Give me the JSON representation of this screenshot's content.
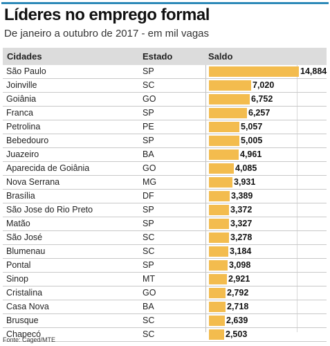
{
  "accent_color": "#2e8ab8",
  "bar_color": "#f3bc4e",
  "title": "Líderes no emprego formal",
  "subtitle": "De janeiro a outubro de 2017 - em mil vagas",
  "headers": {
    "city": "Cidades",
    "state": "Estado",
    "value": "Saldo"
  },
  "source": "Fonte: Caged/MTE",
  "chart_data": {
    "type": "bar",
    "orientation": "horizontal",
    "title": "Líderes no emprego formal",
    "subtitle": "De janeiro a outubro de 2017 - em mil vagas",
    "grid": false,
    "legend": "none",
    "xlim": [
      0,
      14884
    ],
    "rows": [
      {
        "city": "São Paulo",
        "state": "SP",
        "value": 14884,
        "label": "14,884"
      },
      {
        "city": "Joinville",
        "state": "SC",
        "value": 7020,
        "label": "7,020"
      },
      {
        "city": "Goiânia",
        "state": "GO",
        "value": 6752,
        "label": "6,752"
      },
      {
        "city": "Franca",
        "state": "SP",
        "value": 6257,
        "label": "6,257"
      },
      {
        "city": "Petrolina",
        "state": "PE",
        "value": 5057,
        "label": "5,057"
      },
      {
        "city": "Bebedouro",
        "state": "SP",
        "value": 5005,
        "label": "5,005"
      },
      {
        "city": "Juazeiro",
        "state": "BA",
        "value": 4961,
        "label": "4,961"
      },
      {
        "city": "Aparecida de Goiânia",
        "state": "GO",
        "value": 4085,
        "label": "4,085"
      },
      {
        "city": "Nova Serrana",
        "state": "MG",
        "value": 3931,
        "label": "3,931"
      },
      {
        "city": "Brasília",
        "state": "DF",
        "value": 3389,
        "label": "3,389"
      },
      {
        "city": "São Jose do Rio Preto",
        "state": "SP",
        "value": 3372,
        "label": "3,372"
      },
      {
        "city": "Matão",
        "state": "SP",
        "value": 3327,
        "label": "3,327"
      },
      {
        "city": "São José",
        "state": "SC",
        "value": 3278,
        "label": "3,278"
      },
      {
        "city": "Blumenau",
        "state": "SC",
        "value": 3184,
        "label": "3,184"
      },
      {
        "city": "Pontal",
        "state": "SP",
        "value": 3098,
        "label": "3,098"
      },
      {
        "city": "Sinop",
        "state": "MT",
        "value": 2921,
        "label": "2,921"
      },
      {
        "city": "Cristalina",
        "state": "GO",
        "value": 2792,
        "label": "2,792"
      },
      {
        "city": "Casa Nova",
        "state": "BA",
        "value": 2718,
        "label": "2,718"
      },
      {
        "city": "Brusque",
        "state": "SC",
        "value": 2639,
        "label": "2,639"
      },
      {
        "city": "Chapecó",
        "state": "SC",
        "value": 2503,
        "label": "2,503"
      }
    ]
  }
}
